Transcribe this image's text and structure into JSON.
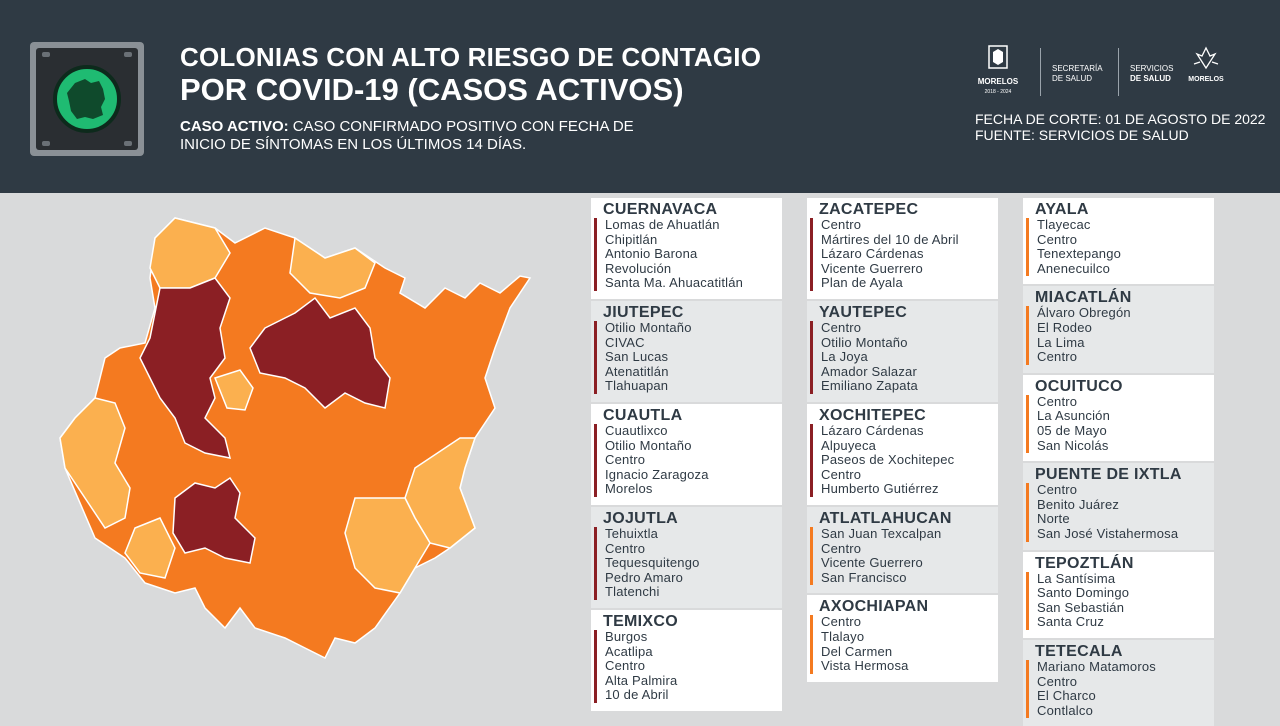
{
  "header": {
    "title_line1": "COLONIAS CON ALTO RIESGO DE CONTAGIO",
    "title_line2": "POR COVID-19 (CASOS ACTIVOS)",
    "definition_label": "CASO ACTIVO:",
    "definition_text_line1": "CASO CONFIRMADO POSITIVO CON FECHA DE",
    "definition_text_line2": "INICIO DE SÍNTOMAS EN LOS ÚLTIMOS 14 DÍAS.",
    "semaforo_color": "#1fbb72",
    "logos": {
      "morelos_label": "MORELOS",
      "morelos_years": "2018 - 2024",
      "secretaria_line1": "SECRETARÍA",
      "secretaria_line2": "DE SALUD",
      "servicios_line1": "SERVICIOS",
      "servicios_line2": "DE SALUD",
      "morelos_right": "MORELOS"
    },
    "fecha_corte": "FECHA DE CORTE: 01 DE AGOSTO DE 2022",
    "fuente": "FUENTE: SERVICIOS DE SALUD"
  },
  "colors": {
    "header_bg": "#2f3a44",
    "background": "#d9dadb",
    "risk_max": "#8b1f24",
    "risk_high": "#f47a20",
    "risk_medium": "#fbb04f"
  },
  "columns": [
    [
      {
        "name": "CUERNAVACA",
        "level": "max",
        "shade": false,
        "colonias": [
          "Lomas de Ahuatlán",
          "Chipitlán",
          "Antonio Barona",
          "Revolución",
          "Santa Ma. Ahuacatitlán"
        ]
      },
      {
        "name": "JIUTEPEC",
        "level": "max",
        "shade": true,
        "colonias": [
          "Otilio Montaño",
          "CIVAC",
          "San Lucas",
          "Atenatitlán",
          "Tlahuapan"
        ]
      },
      {
        "name": "CUAUTLA",
        "level": "max",
        "shade": false,
        "colonias": [
          "Cuautlixco",
          "Otilio Montaño",
          "Centro",
          "Ignacio Zaragoza",
          "Morelos"
        ]
      },
      {
        "name": "JOJUTLA",
        "level": "max",
        "shade": true,
        "colonias": [
          "Tehuixtla",
          "Centro",
          "Tequesquitengo",
          "Pedro Amaro",
          "Tlatenchi"
        ]
      },
      {
        "name": "TEMIXCO",
        "level": "max",
        "shade": false,
        "colonias": [
          "Burgos",
          "Acatlipa",
          "Centro",
          "Alta Palmira",
          "10 de Abril"
        ]
      }
    ],
    [
      {
        "name": "ZACATEPEC",
        "level": "max",
        "shade": false,
        "colonias": [
          "Centro",
          "Mártires del 10 de Abril",
          "Lázaro Cárdenas",
          "Vicente Guerrero",
          "Plan de Ayala"
        ]
      },
      {
        "name": "YAUTEPEC",
        "level": "max",
        "shade": true,
        "colonias": [
          "Centro",
          "Otilio Montaño",
          "La Joya",
          "Amador Salazar",
          "Emiliano Zapata"
        ]
      },
      {
        "name": "XOCHITEPEC",
        "level": "max",
        "shade": false,
        "colonias": [
          "Lázaro Cárdenas",
          "Alpuyeca",
          "Paseos de Xochitepec",
          "Centro",
          "Humberto Gutiérrez"
        ]
      },
      {
        "name": "ATLATLAHUCAN",
        "level": "high",
        "shade": true,
        "colonias": [
          "San Juan Texcalpan",
          "Centro",
          "Vicente Guerrero",
          "San Francisco"
        ]
      },
      {
        "name": "AXOCHIAPAN",
        "level": "high",
        "shade": false,
        "colonias": [
          "Centro",
          "Tlalayo",
          "Del Carmen",
          "Vista Hermosa"
        ]
      }
    ],
    [
      {
        "name": "AYALA",
        "level": "high",
        "shade": false,
        "colonias": [
          "Tlayecac",
          "Centro",
          "Tenextepango",
          "Anenecuilco"
        ]
      },
      {
        "name": "MIACATLÁN",
        "level": "high",
        "shade": true,
        "colonias": [
          "Álvaro Obregón",
          "El Rodeo",
          "La Lima",
          "Centro"
        ]
      },
      {
        "name": "OCUITUCO",
        "level": "high",
        "shade": false,
        "colonias": [
          "Centro",
          "La Asunción",
          "05 de Mayo",
          "San Nicolás"
        ]
      },
      {
        "name": "PUENTE DE IXTLA",
        "level": "high",
        "shade": true,
        "colonias": [
          "Centro",
          "Benito Juárez",
          "Norte",
          "San José Vistahermosa"
        ]
      },
      {
        "name": "TEPOZTLÁN",
        "level": "high",
        "shade": false,
        "colonias": [
          "La Santísima",
          "Santo Domingo",
          "San Sebastián",
          "Santa Cruz"
        ]
      },
      {
        "name": "TETECALA",
        "level": "high",
        "shade": true,
        "colonias": [
          "Mariano Matamoros",
          "Centro",
          "El Charco",
          "Contlalco"
        ]
      }
    ]
  ]
}
